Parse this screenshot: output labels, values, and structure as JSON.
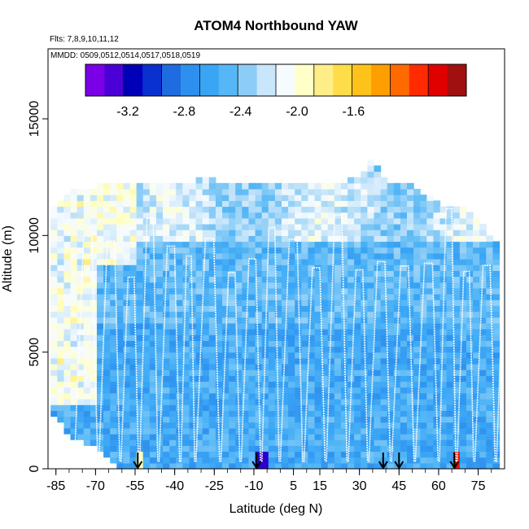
{
  "chart_data": {
    "type": "heatmap",
    "title": "ATOM4 Northbound YAW",
    "subtitle_flights": "Flts: 7,8,9,10,11,12",
    "subtitle_dates": "MMDD: 0509,0512,0514,0517,0518,0519",
    "xlabel": "Latitude (deg N)",
    "ylabel": "Altitude (m)",
    "xlim": [
      -88,
      85
    ],
    "ylim": [
      0,
      18000
    ],
    "xticks": [
      -85,
      -70,
      -55,
      -40,
      -25,
      -10,
      5,
      15,
      30,
      45,
      60,
      75
    ],
    "xtick_labels": [
      "-85",
      "-70",
      "-55",
      "-40",
      "-25",
      "-10",
      "5",
      "15",
      "30",
      "45",
      "60",
      "75"
    ],
    "yticks": [
      0,
      5000,
      10000,
      15000
    ],
    "ytick_labels": [
      "0",
      "5000",
      "10000",
      "15000"
    ],
    "colorbar": {
      "range": [
        -3.5,
        -0.8
      ],
      "ticks": [
        -3.2,
        -2.8,
        -2.4,
        -2.0,
        -1.6
      ],
      "tick_labels": [
        "-3.2",
        "-2.8",
        "-2.4",
        "-2.0",
        "-1.6"
      ],
      "colors": [
        "#7a00e6",
        "#4b00d8",
        "#0000b8",
        "#0a30d0",
        "#1f6be0",
        "#2e90ee",
        "#3aa5f5",
        "#55b7f6",
        "#8ccdf7",
        "#c9e6fa",
        "#f6fbff",
        "#ffffc8",
        "#ffee88",
        "#ffdc4a",
        "#ffc21a",
        "#ff9e00",
        "#ff6a00",
        "#ff2a00",
        "#e00000",
        "#a01010"
      ]
    },
    "stations_lat": [
      -54,
      -9,
      39,
      45,
      66
    ],
    "profile_top_alt": [
      [
        -87,
        11000
      ],
      [
        -80,
        11800
      ],
      [
        -70,
        12000
      ],
      [
        -60,
        12200
      ],
      [
        -50,
        12100
      ],
      [
        -40,
        12000
      ],
      [
        -30,
        12300
      ],
      [
        -20,
        12200
      ],
      [
        -10,
        12000
      ],
      [
        0,
        12200
      ],
      [
        10,
        12100
      ],
      [
        20,
        12200
      ],
      [
        30,
        12300
      ],
      [
        35,
        13200
      ],
      [
        40,
        12200
      ],
      [
        50,
        12000
      ],
      [
        60,
        11300
      ],
      [
        70,
        11000
      ],
      [
        78,
        10200
      ],
      [
        82,
        9500
      ]
    ],
    "profile_bottom_alt": [
      [
        -87,
        2500
      ],
      [
        -80,
        1600
      ],
      [
        -70,
        1000
      ],
      [
        -60,
        0
      ],
      [
        -50,
        0
      ],
      [
        -40,
        0
      ],
      [
        -30,
        0
      ],
      [
        -20,
        0
      ],
      [
        -10,
        0
      ],
      [
        0,
        0
      ],
      [
        10,
        0
      ],
      [
        20,
        0
      ],
      [
        30,
        0
      ],
      [
        40,
        0
      ],
      [
        50,
        0
      ],
      [
        60,
        0
      ],
      [
        70,
        0
      ],
      [
        80,
        0
      ],
      [
        82,
        0
      ]
    ]
  }
}
